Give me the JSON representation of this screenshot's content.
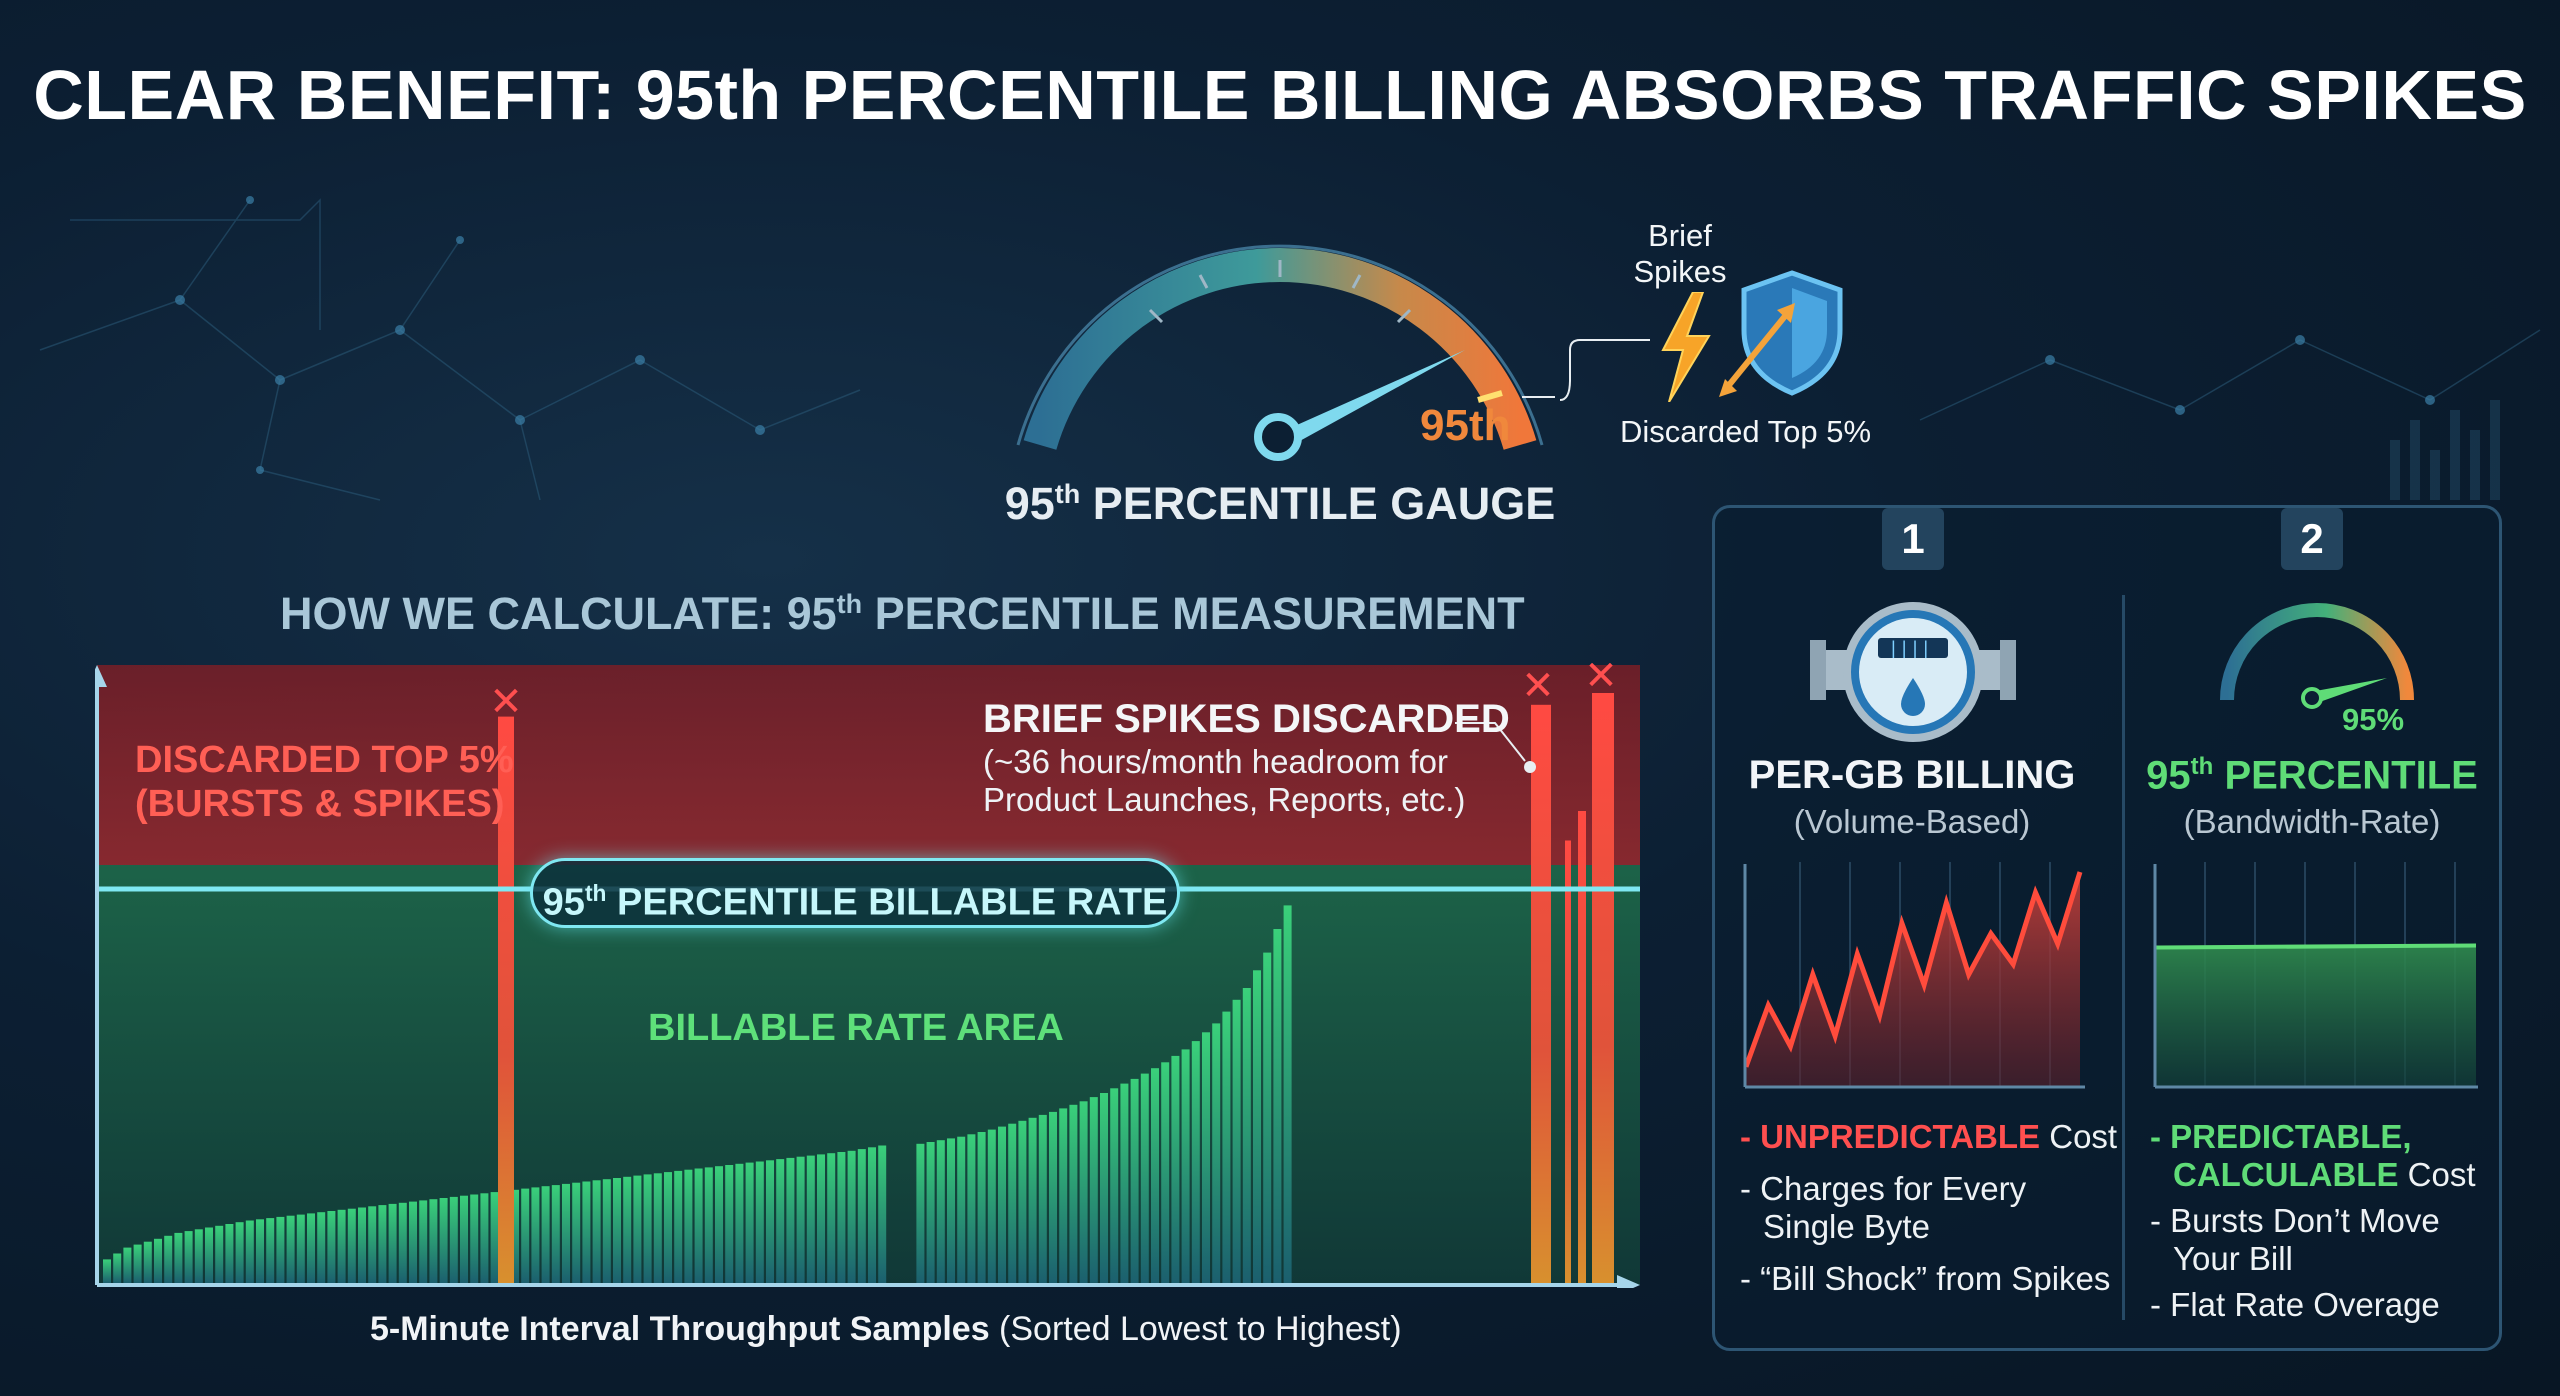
{
  "title": "CLEAR BENEFIT: 95th PERCENTILE BILLING ABSORBS TRAFFIC SPIKES",
  "gauge": {
    "needle_label": "95th",
    "caption_main": "95",
    "caption_sup": "th",
    "caption_rest": " PERCENTILE GAUGE",
    "spikes_label_line1": "Brief",
    "spikes_label_line2": "Spikes",
    "discarded_label": "Discarded Top 5%"
  },
  "section": {
    "title_pre": "HOW WE CALCULATE: 95",
    "title_sup": "th",
    "title_post": " PERCENTILE MEASUREMENT"
  },
  "chart_data": {
    "type": "bar",
    "discarded_label_line1": "DISCARDED TOP 5%",
    "discarded_label_line2": "(BURSTS & SPIKES)",
    "spikes_title": "BRIEF SPIKES DISCARDED",
    "spikes_sub_line1": "(~36 hours/month headroom for",
    "spikes_sub_line2": "Product Launches, Reports, etc.)",
    "billable_rate_pre": "95",
    "billable_rate_sup": "th",
    "billable_rate_post": " PERCENTILE BILLABLE RATE",
    "billable_area_label": "BILLABLE RATE AREA",
    "xlabel_bold": "5-Minute Interval Throughput Samples",
    "xlabel_rest": " (Sorted Lowest to Highest)",
    "marker_symbol": "✕",
    "billable_threshold": 0.66,
    "samples": [
      0.04,
      0.05,
      0.06,
      0.065,
      0.07,
      0.075,
      0.08,
      0.085,
      0.088,
      0.091,
      0.094,
      0.097,
      0.1,
      0.103,
      0.106,
      0.108,
      0.11,
      0.112,
      0.114,
      0.116,
      0.118,
      0.12,
      0.122,
      0.124,
      0.126,
      0.128,
      0.13,
      0.132,
      0.134,
      0.136,
      0.138,
      0.14,
      0.142,
      0.144,
      0.146,
      0.148,
      0.15,
      0.152,
      0.154,
      0.156,
      0.158,
      0.16,
      0.162,
      0.164,
      0.166,
      0.168,
      0.17,
      0.172,
      0.174,
      0.176,
      0.178,
      0.18,
      0.182,
      0.184,
      0.186,
      0.188,
      0.19,
      0.192,
      0.194,
      0.196,
      0.198,
      0.2,
      0.202,
      0.204,
      0.206,
      0.208,
      0.21,
      0.212,
      0.214,
      0.216,
      0.218,
      0.22,
      0.222,
      0.224,
      0.227,
      0.23,
      0.233,
      0.236,
      0.239,
      0.242,
      0.245,
      0.248,
      0.252,
      0.256,
      0.26,
      0.265,
      0.27,
      0.275,
      0.28,
      0.285,
      0.29,
      0.296,
      0.302,
      0.308,
      0.315,
      0.322,
      0.33,
      0.338,
      0.346,
      0.355,
      0.364,
      0.374,
      0.385,
      0.396,
      0.41,
      0.425,
      0.44,
      0.46,
      0.48,
      0.5,
      0.53,
      0.56,
      0.6,
      0.64
    ],
    "spike_samples": [
      0.96,
      0.98,
      0.75,
      0.8,
      1.0
    ],
    "meter_display": "||||"
  },
  "panel": {
    "col1": {
      "badge": "1",
      "title": "PER-GB BILLING",
      "subtitle": "(Volume-Based)",
      "bullet1_hl": "UNPREDICTABLE",
      "bullet1_rest": " Cost",
      "bullet2_line1": "- Charges for Every",
      "bullet2_line2": "Single Byte",
      "bullet3": "- “Bill Shock” from Spikes",
      "series": [
        0.05,
        0.35,
        0.15,
        0.5,
        0.2,
        0.6,
        0.3,
        0.75,
        0.45,
        0.85,
        0.5,
        0.7,
        0.55,
        0.9,
        0.65,
        1.0
      ]
    },
    "col2": {
      "badge": "2",
      "gauge_label": "95%",
      "title_pre": "95",
      "title_sup": "th",
      "title_post": " PERCENTILE",
      "subtitle": "(Bandwidth-Rate)",
      "bullet1_hl_line1": "PREDICTABLE,",
      "bullet1_hl_line2": "CALCULABLE",
      "bullet1_rest": " Cost",
      "bullet2_line1": "- Bursts Don’t Move",
      "bullet2_line2": "Your Bill",
      "bullet3": "- Flat Rate Overage",
      "flat_level": 0.62
    }
  },
  "colors": {
    "background": "#0c1f33",
    "discard_red": "#ff4f4f",
    "billable_green": "#5fdc77",
    "cyan": "#7fe8f2",
    "gauge_orange": "#f08a3c"
  }
}
